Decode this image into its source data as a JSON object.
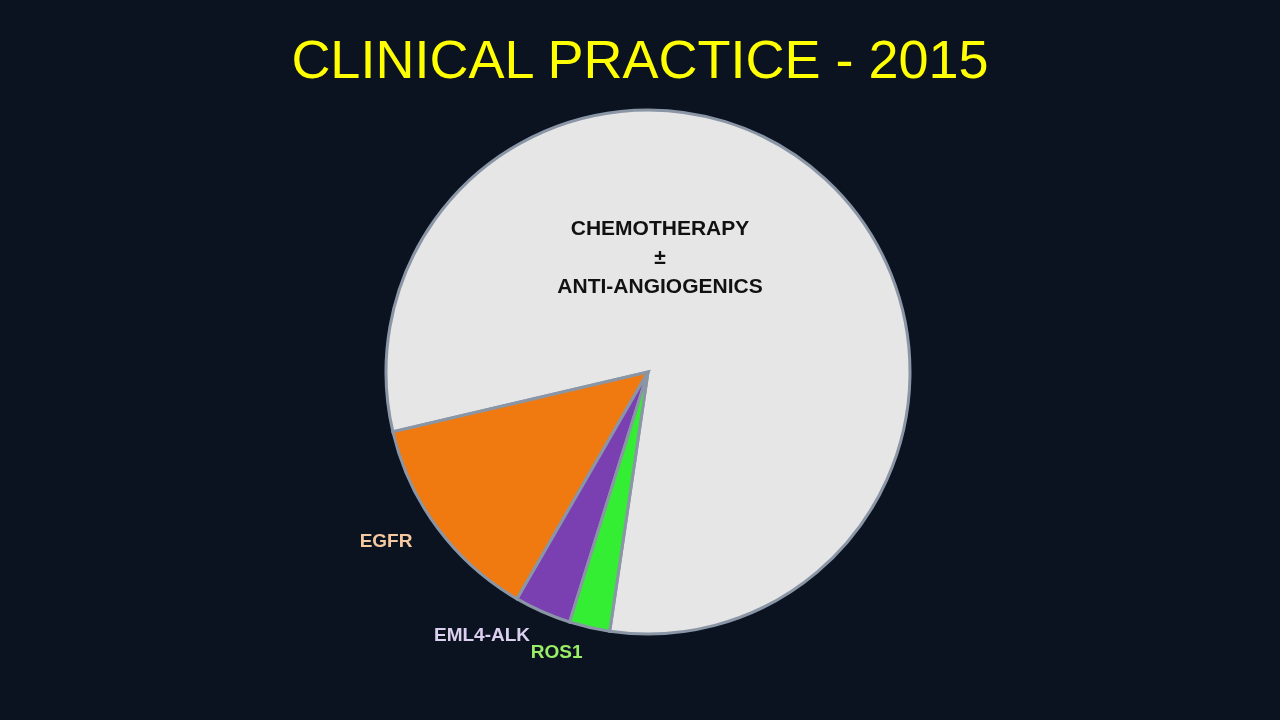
{
  "chart_data": {
    "type": "pie",
    "title": "CLINICAL PRACTICE - 2015",
    "categories": [
      "CHEMOTHERAPY\n±\nANTI-ANGIOGENICS",
      "EGFR",
      "EML4-ALK",
      "ROS1"
    ],
    "values": [
      81,
      13,
      3.5,
      2.5
    ],
    "colors": [
      "#e6e6e6",
      "#f07a10",
      "#7a3fb0",
      "#33ee33"
    ]
  }
}
